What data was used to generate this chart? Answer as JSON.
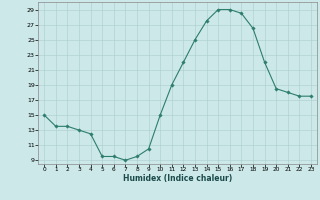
{
  "x": [
    0,
    1,
    2,
    3,
    4,
    5,
    6,
    7,
    8,
    9,
    10,
    11,
    12,
    13,
    14,
    15,
    16,
    17,
    18,
    19,
    20,
    21,
    22,
    23
  ],
  "y": [
    15,
    13.5,
    13.5,
    13,
    12.5,
    9.5,
    9.5,
    9,
    9.5,
    10.5,
    15,
    19,
    22,
    25,
    27.5,
    29,
    29,
    28.5,
    26.5,
    22,
    18.5,
    18,
    17.5,
    17.5
  ],
  "xlabel": "Humidex (Indice chaleur)",
  "xlim": [
    -0.5,
    23.5
  ],
  "ylim": [
    8.5,
    30
  ],
  "yticks": [
    9,
    11,
    13,
    15,
    17,
    19,
    21,
    23,
    25,
    27,
    29
  ],
  "xticks": [
    0,
    1,
    2,
    3,
    4,
    5,
    6,
    7,
    8,
    9,
    10,
    11,
    12,
    13,
    14,
    15,
    16,
    17,
    18,
    19,
    20,
    21,
    22,
    23
  ],
  "line_color": "#2d7d6e",
  "marker": "D",
  "marker_size": 1.8,
  "bg_color": "#cce8e8",
  "grid_color": "#aacccc"
}
